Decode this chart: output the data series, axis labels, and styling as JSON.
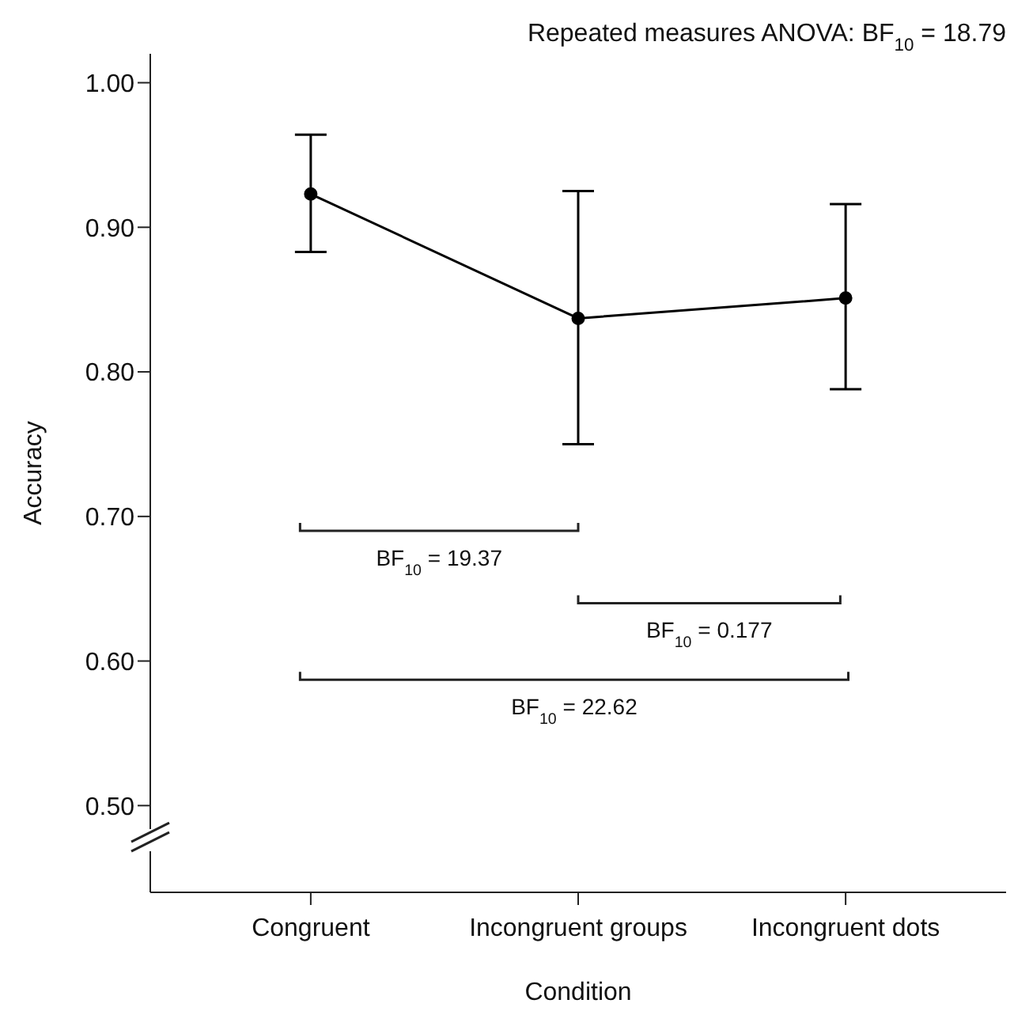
{
  "chart_data": {
    "type": "line",
    "title": "Repeated measures ANOVA: BF$_{10}$ = 18.79",
    "xlabel": "Condition",
    "ylabel": "Accuracy",
    "categories": [
      "Congruent",
      "Incongruent groups",
      "Incongruent dots"
    ],
    "series": [
      {
        "color": "#000000",
        "values": [
          0.923,
          0.837,
          0.851
        ],
        "errors": [
          [
            0.883,
            0.964
          ],
          [
            0.75,
            0.925
          ],
          [
            0.788,
            0.916
          ]
        ]
      }
    ],
    "ylim": [
      0.44,
      1.02
    ],
    "yticks": [
      {
        "value": 0.5,
        "label": "0.50"
      },
      {
        "value": 0.6,
        "label": "0.60"
      },
      {
        "value": 0.7,
        "label": "0.70"
      },
      {
        "value": 0.8,
        "label": "0.80"
      },
      {
        "value": 0.9,
        "label": "0.90"
      },
      {
        "value": 1.0,
        "label": "1.00"
      }
    ],
    "marker": "circle",
    "line_style": "solid",
    "annotations": [
      "BF$_{10}$ = 19.37",
      "BF$_{10}$ = 0.177",
      "BF$_{10}$ = 22.62"
    ]
  }
}
